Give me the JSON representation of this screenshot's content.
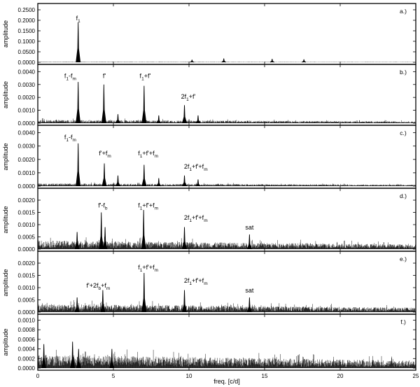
{
  "chart_data": {
    "type": "line",
    "xlabel": "freq. [c/d]",
    "xlim": [
      0,
      25
    ],
    "xticks": [
      "0",
      "5",
      "10",
      "15",
      "20",
      "25"
    ],
    "panels": [
      {
        "tag": "a.)",
        "ylabel": "amplitude",
        "ylim": [
          0,
          0.27
        ],
        "yticks": [
          "0.0000",
          "0.0500",
          "0.1000",
          "0.1500",
          "0.2000",
          "0.2500"
        ],
        "noise": 0.002,
        "peaks": [
          {
            "x": 2.67,
            "y": 0.19
          },
          {
            "x": 10.2,
            "y": 0.012
          },
          {
            "x": 12.3,
            "y": 0.018
          },
          {
            "x": 15.5,
            "y": 0.016
          },
          {
            "x": 17.6,
            "y": 0.014
          }
        ],
        "annotations": [
          {
            "segments": [
              {
                "t": "f"
              },
              {
                "t": "1",
                "sub": true
              }
            ],
            "x": 2.67,
            "y": 0.2
          }
        ]
      },
      {
        "tag": "b.)",
        "ylabel": "amplitude",
        "ylim": [
          0,
          0.0044
        ],
        "yticks": [
          "0.0000",
          "0.0010",
          "0.0020",
          "0.0030",
          "0.0040"
        ],
        "noise": 0.00025,
        "peaks": [
          {
            "x": 2.67,
            "y": 0.0032
          },
          {
            "x": 4.37,
            "y": 0.003
          },
          {
            "x": 5.3,
            "y": 0.0007
          },
          {
            "x": 7.03,
            "y": 0.0029
          },
          {
            "x": 8.0,
            "y": 0.0006
          },
          {
            "x": 9.7,
            "y": 0.0014
          },
          {
            "x": 10.6,
            "y": 0.0006
          }
        ],
        "annotations": [
          {
            "segments": [
              {
                "t": "f"
              },
              {
                "t": "1",
                "sub": true
              },
              {
                "t": "-f"
              },
              {
                "t": "m",
                "sub": true
              }
            ],
            "x": 2.15,
            "y": 0.0035
          },
          {
            "segments": [
              {
                "t": "f'"
              }
            ],
            "x": 4.4,
            "y": 0.0035
          },
          {
            "segments": [
              {
                "t": "f"
              },
              {
                "t": "1",
                "sub": true
              },
              {
                "t": "+f'"
              }
            ],
            "x": 7.1,
            "y": 0.0035
          },
          {
            "segments": [
              {
                "t": "2f"
              },
              {
                "t": "1",
                "sub": true
              },
              {
                "t": "+f'"
              }
            ],
            "x": 9.95,
            "y": 0.0019
          }
        ]
      },
      {
        "tag": "c.)",
        "ylabel": "amplitude",
        "ylim": [
          0,
          0.0044
        ],
        "yticks": [
          "0.0000",
          "0.0010",
          "0.0020",
          "0.0030",
          "0.0040"
        ],
        "noise": 0.0002,
        "peaks": [
          {
            "x": 2.67,
            "y": 0.0032
          },
          {
            "x": 4.4,
            "y": 0.0017
          },
          {
            "x": 5.3,
            "y": 0.0008
          },
          {
            "x": 7.03,
            "y": 0.0016
          },
          {
            "x": 8.0,
            "y": 0.0006
          },
          {
            "x": 9.7,
            "y": 0.0008
          },
          {
            "x": 10.6,
            "y": 0.0005
          }
        ],
        "annotations": [
          {
            "segments": [
              {
                "t": "f"
              },
              {
                "t": "1",
                "sub": true
              },
              {
                "t": "-f"
              },
              {
                "t": "m",
                "sub": true
              }
            ],
            "x": 2.15,
            "y": 0.0035
          },
          {
            "segments": [
              {
                "t": "f'+f"
              },
              {
                "t": "m",
                "sub": true
              }
            ],
            "x": 4.45,
            "y": 0.0023
          },
          {
            "segments": [
              {
                "t": "f"
              },
              {
                "t": "1",
                "sub": true
              },
              {
                "t": "+f'+f"
              },
              {
                "t": "m",
                "sub": true
              }
            ],
            "x": 7.3,
            "y": 0.0023
          },
          {
            "segments": [
              {
                "t": "2f"
              },
              {
                "t": "1",
                "sub": true
              },
              {
                "t": "+f'+f"
              },
              {
                "t": "m",
                "sub": true
              }
            ],
            "x": 10.45,
            "y": 0.0013
          }
        ]
      },
      {
        "tag": "d.)",
        "ylabel": "amplitude",
        "ylim": [
          0,
          0.0024
        ],
        "yticks": [
          "0.0000",
          "0.0005",
          "0.0010",
          "0.0015",
          "0.0020"
        ],
        "noise": 0.00035,
        "peaks": [
          {
            "x": 2.6,
            "y": 0.0007
          },
          {
            "x": 4.2,
            "y": 0.0015
          },
          {
            "x": 4.45,
            "y": 0.0009
          },
          {
            "x": 7.0,
            "y": 0.0016
          },
          {
            "x": 9.7,
            "y": 0.0009
          },
          {
            "x": 14.0,
            "y": 0.0006
          }
        ],
        "annotations": [
          {
            "segments": [
              {
                "t": "f'-f"
              },
              {
                "t": "b",
                "sub": true
              }
            ],
            "x": 4.3,
            "y": 0.0017
          },
          {
            "segments": [
              {
                "t": "f"
              },
              {
                "t": "1",
                "sub": true
              },
              {
                "t": "+f'+f"
              },
              {
                "t": "m",
                "sub": true
              }
            ],
            "x": 7.3,
            "y": 0.0017
          },
          {
            "segments": [
              {
                "t": "2f"
              },
              {
                "t": "1",
                "sub": true
              },
              {
                "t": "+f'+f"
              },
              {
                "t": "m",
                "sub": true
              }
            ],
            "x": 10.45,
            "y": 0.0012
          },
          {
            "segments": [
              {
                "t": "sat"
              }
            ],
            "x": 14.0,
            "y": 0.0008
          }
        ]
      },
      {
        "tag": "e.)",
        "ylabel": "amplitude",
        "ylim": [
          0,
          0.0024
        ],
        "yticks": [
          "0.0000",
          "0.0005",
          "0.0010",
          "0.0015",
          "0.0020"
        ],
        "noise": 0.00033,
        "peaks": [
          {
            "x": 2.6,
            "y": 0.0006
          },
          {
            "x": 4.3,
            "y": 0.0009
          },
          {
            "x": 7.03,
            "y": 0.0016
          },
          {
            "x": 9.7,
            "y": 0.0009
          },
          {
            "x": 14.0,
            "y": 0.0006
          }
        ],
        "annotations": [
          {
            "segments": [
              {
                "t": "f'+2f"
              },
              {
                "t": "b",
                "sub": true
              },
              {
                "t": "+f"
              },
              {
                "t": "m",
                "sub": true
              }
            ],
            "x": 4.0,
            "y": 0.001
          },
          {
            "segments": [
              {
                "t": "f"
              },
              {
                "t": "1",
                "sub": true
              },
              {
                "t": "+f'+f"
              },
              {
                "t": "m",
                "sub": true
              }
            ],
            "x": 7.3,
            "y": 0.00175
          },
          {
            "segments": [
              {
                "t": "2f"
              },
              {
                "t": "1",
                "sub": true
              },
              {
                "t": "+f'+f"
              },
              {
                "t": "m",
                "sub": true
              }
            ],
            "x": 10.45,
            "y": 0.0012
          },
          {
            "segments": [
              {
                "t": "sat"
              }
            ],
            "x": 14.0,
            "y": 0.0008
          }
        ]
      },
      {
        "tag": "f.)",
        "ylabel": "amplitude",
        "ylim": [
          0,
          0.00108
        ],
        "yticks": [
          "0.0000",
          "0.0002",
          "0.0004",
          "0.0006",
          "0.0008",
          "0.0010"
        ],
        "noise": 0.00028,
        "peaks": [
          {
            "x": 0.4,
            "y": 0.0005
          },
          {
            "x": 2.3,
            "y": 0.00055
          },
          {
            "x": 2.7,
            "y": 0.0004
          },
          {
            "x": 4.9,
            "y": 0.0004
          }
        ],
        "annotations": []
      }
    ]
  }
}
